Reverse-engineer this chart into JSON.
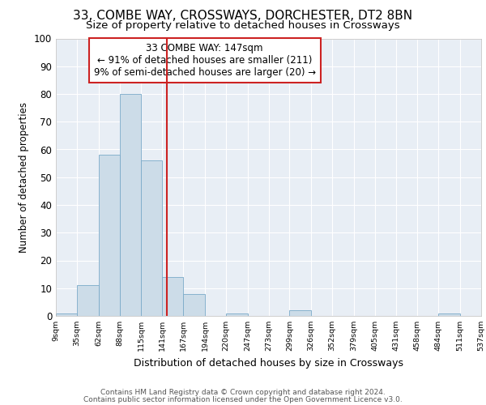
{
  "title1": "33, COMBE WAY, CROSSWAYS, DORCHESTER, DT2 8BN",
  "title2": "Size of property relative to detached houses in Crossways",
  "xlabel": "Distribution of detached houses by size in Crossways",
  "ylabel": "Number of detached properties",
  "bin_edges": [
    9,
    35,
    62,
    88,
    115,
    141,
    167,
    194,
    220,
    247,
    273,
    299,
    326,
    352,
    379,
    405,
    431,
    458,
    484,
    511,
    537
  ],
  "counts": [
    1,
    11,
    58,
    80,
    56,
    14,
    8,
    0,
    1,
    0,
    0,
    2,
    0,
    0,
    0,
    0,
    0,
    0,
    1,
    0
  ],
  "bar_color": "#ccdce8",
  "bar_edge_color": "#7aaac8",
  "property_value": 147,
  "vline_color": "#cc2222",
  "annotation_text": "33 COMBE WAY: 147sqm\n← 91% of detached houses are smaller (211)\n9% of semi-detached houses are larger (20) →",
  "annotation_box_color": "#ffffff",
  "annotation_box_edge_color": "#cc2222",
  "ylim": [
    0,
    100
  ],
  "tick_labels": [
    "9sqm",
    "35sqm",
    "62sqm",
    "88sqm",
    "115sqm",
    "141sqm",
    "167sqm",
    "194sqm",
    "220sqm",
    "247sqm",
    "273sqm",
    "299sqm",
    "326sqm",
    "352sqm",
    "379sqm",
    "405sqm",
    "431sqm",
    "458sqm",
    "484sqm",
    "511sqm",
    "537sqm"
  ],
  "footer1": "Contains HM Land Registry data © Crown copyright and database right 2024.",
  "footer2": "Contains public sector information licensed under the Open Government Licence v3.0.",
  "bg_color": "#ffffff",
  "plot_bg_color": "#e8eef5",
  "grid_color": "#ffffff",
  "title1_fontsize": 11,
  "title2_fontsize": 9.5
}
